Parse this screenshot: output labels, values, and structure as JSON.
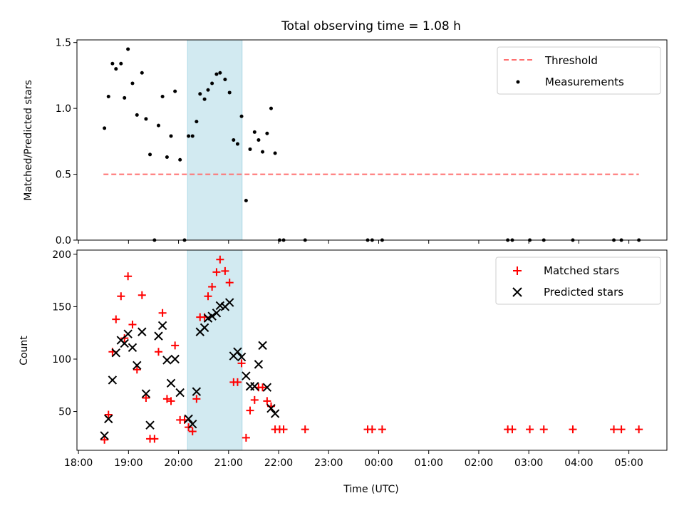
{
  "figure": {
    "title": "Total observing time = 1.08 h"
  },
  "chart_data": [
    {
      "type": "scatter",
      "ylabel": "Matched/Predicted stars",
      "xlabel": "",
      "x_unit": "hours since 00:00 of first night (x >= 24 means after midnight)",
      "xlim": [
        17.97,
        29.76
      ],
      "ylim": [
        0,
        1.52
      ],
      "yticks": [
        0.0,
        0.5,
        1.0,
        1.5
      ],
      "ytick_labels": [
        "0.0",
        "0.5",
        "1.0",
        "1.5"
      ],
      "grid": false,
      "legend_position": "upper right",
      "highlight_span": {
        "from": 20.18,
        "to": 21.27,
        "color": "#add8e6"
      },
      "threshold": {
        "name": "Threshold",
        "y": 0.5,
        "x_from": 18.5,
        "x_to": 29.2,
        "color": "#ff7070"
      },
      "series": [
        {
          "name": "Measurements",
          "color": "#000000",
          "marker": "dot",
          "points": [
            [
              18.52,
              0.85
            ],
            [
              18.6,
              1.09
            ],
            [
              18.68,
              1.34
            ],
            [
              18.75,
              1.3
            ],
            [
              18.85,
              1.34
            ],
            [
              18.92,
              1.08
            ],
            [
              18.99,
              1.45
            ],
            [
              19.08,
              1.19
            ],
            [
              19.17,
              0.95
            ],
            [
              19.27,
              1.27
            ],
            [
              19.35,
              0.92
            ],
            [
              19.43,
              0.65
            ],
            [
              19.52,
              0.0
            ],
            [
              19.6,
              0.87
            ],
            [
              19.68,
              1.09
            ],
            [
              19.77,
              0.63
            ],
            [
              19.85,
              0.79
            ],
            [
              19.93,
              1.13
            ],
            [
              20.03,
              0.61
            ],
            [
              20.12,
              0.0
            ],
            [
              20.2,
              0.79
            ],
            [
              20.28,
              0.79
            ],
            [
              20.36,
              0.9
            ],
            [
              20.43,
              1.11
            ],
            [
              20.52,
              1.07
            ],
            [
              20.59,
              1.14
            ],
            [
              20.67,
              1.19
            ],
            [
              20.76,
              1.26
            ],
            [
              20.83,
              1.27
            ],
            [
              20.93,
              1.22
            ],
            [
              21.02,
              1.12
            ],
            [
              21.1,
              0.76
            ],
            [
              21.18,
              0.73
            ],
            [
              21.26,
              0.94
            ],
            [
              21.35,
              0.3
            ],
            [
              21.43,
              0.69
            ],
            [
              21.52,
              0.82
            ],
            [
              21.6,
              0.76
            ],
            [
              21.68,
              0.67
            ],
            [
              21.77,
              0.81
            ],
            [
              21.85,
              1.0
            ],
            [
              21.93,
              0.66
            ],
            [
              22.02,
              0.0
            ],
            [
              22.1,
              0.0
            ],
            [
              22.53,
              0.0
            ],
            [
              23.78,
              0.0
            ],
            [
              23.87,
              0.0
            ],
            [
              24.07,
              0.0
            ],
            [
              26.58,
              0.0
            ],
            [
              26.67,
              0.0
            ],
            [
              27.02,
              0.0
            ],
            [
              27.3,
              0.0
            ],
            [
              27.88,
              0.0
            ],
            [
              28.7,
              0.0
            ],
            [
              28.85,
              0.0
            ],
            [
              29.2,
              0.0
            ]
          ]
        }
      ]
    },
    {
      "type": "scatter",
      "ylabel": "Count",
      "xlabel": "Time (UTC)",
      "x_unit": "hours since 00:00 of first night (x >= 24 means after midnight)",
      "xlim": [
        17.97,
        29.76
      ],
      "ylim": [
        13,
        204
      ],
      "yticks": [
        50,
        100,
        150,
        200
      ],
      "ytick_labels": [
        "50",
        "100",
        "150",
        "200"
      ],
      "xticks": [
        18,
        19,
        20,
        21,
        22,
        23,
        24,
        25,
        26,
        27,
        28,
        29
      ],
      "xtick_labels": [
        "18:00",
        "19:00",
        "20:00",
        "21:00",
        "22:00",
        "23:00",
        "00:00",
        "01:00",
        "02:00",
        "03:00",
        "04:00",
        "05:00"
      ],
      "grid": false,
      "legend_position": "upper right",
      "highlight_span": {
        "from": 20.18,
        "to": 21.27,
        "color": "#add8e6"
      },
      "series": [
        {
          "name": "Matched stars",
          "color": "#ff0000",
          "marker": "plus",
          "points": [
            [
              18.52,
              23
            ],
            [
              18.6,
              47
            ],
            [
              18.68,
              107
            ],
            [
              18.75,
              138
            ],
            [
              18.85,
              160
            ],
            [
              18.92,
              120
            ],
            [
              18.99,
              179
            ],
            [
              19.08,
              133
            ],
            [
              19.17,
              90
            ],
            [
              19.27,
              161
            ],
            [
              19.35,
              63
            ],
            [
              19.43,
              24
            ],
            [
              19.52,
              24
            ],
            [
              19.6,
              107
            ],
            [
              19.68,
              144
            ],
            [
              19.77,
              62
            ],
            [
              19.85,
              60
            ],
            [
              19.93,
              113
            ],
            [
              20.03,
              42
            ],
            [
              20.12,
              42
            ],
            [
              20.2,
              35
            ],
            [
              20.28,
              31
            ],
            [
              20.36,
              62
            ],
            [
              20.43,
              140
            ],
            [
              20.52,
              140
            ],
            [
              20.59,
              160
            ],
            [
              20.67,
              169
            ],
            [
              20.76,
              183
            ],
            [
              20.83,
              195
            ],
            [
              20.93,
              184
            ],
            [
              21.02,
              173
            ],
            [
              21.1,
              78
            ],
            [
              21.18,
              78
            ],
            [
              21.26,
              96
            ],
            [
              21.35,
              25
            ],
            [
              21.43,
              51
            ],
            [
              21.52,
              61
            ],
            [
              21.6,
              73
            ],
            [
              21.68,
              73
            ],
            [
              21.77,
              60
            ],
            [
              21.85,
              55
            ],
            [
              21.93,
              33
            ],
            [
              22.02,
              33
            ],
            [
              22.1,
              33
            ],
            [
              22.53,
              33
            ],
            [
              23.78,
              33
            ],
            [
              23.87,
              33
            ],
            [
              24.07,
              33
            ],
            [
              26.58,
              33
            ],
            [
              26.67,
              33
            ],
            [
              27.02,
              33
            ],
            [
              27.3,
              33
            ],
            [
              27.88,
              33
            ],
            [
              28.7,
              33
            ],
            [
              28.85,
              33
            ],
            [
              29.2,
              33
            ]
          ]
        },
        {
          "name": "Predicted stars",
          "color": "#000000",
          "marker": "x",
          "points": [
            [
              18.52,
              27
            ],
            [
              18.6,
              43
            ],
            [
              18.68,
              80
            ],
            [
              18.75,
              106
            ],
            [
              18.85,
              118
            ],
            [
              18.92,
              115
            ],
            [
              18.99,
              124
            ],
            [
              19.08,
              111
            ],
            [
              19.17,
              94
            ],
            [
              19.27,
              126
            ],
            [
              19.35,
              67
            ],
            [
              19.43,
              37
            ],
            [
              19.6,
              122
            ],
            [
              19.68,
              132
            ],
            [
              19.77,
              99
            ],
            [
              19.85,
              77
            ],
            [
              19.93,
              100
            ],
            [
              20.03,
              68
            ],
            [
              20.2,
              43
            ],
            [
              20.28,
              38
            ],
            [
              20.36,
              69
            ],
            [
              20.43,
              126
            ],
            [
              20.52,
              130
            ],
            [
              20.59,
              139
            ],
            [
              20.67,
              141
            ],
            [
              20.76,
              144
            ],
            [
              20.83,
              151
            ],
            [
              20.93,
              150
            ],
            [
              21.02,
              154
            ],
            [
              21.1,
              103
            ],
            [
              21.18,
              107
            ],
            [
              21.26,
              102
            ],
            [
              21.35,
              84
            ],
            [
              21.43,
              74
            ],
            [
              21.52,
              74
            ],
            [
              21.6,
              95
            ],
            [
              21.68,
              113
            ],
            [
              21.77,
              73
            ],
            [
              21.85,
              53
            ],
            [
              21.93,
              48
            ]
          ]
        }
      ]
    }
  ]
}
